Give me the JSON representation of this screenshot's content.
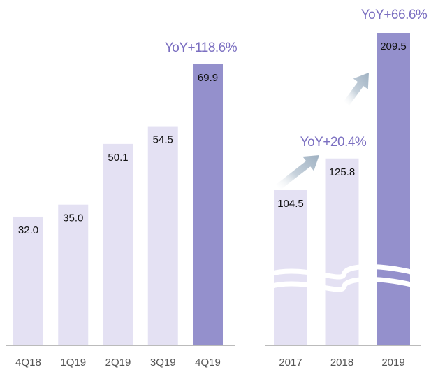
{
  "colors": {
    "light": "#e4e1f3",
    "dark": "#9490cc",
    "accent": "#7b6fc1",
    "arrow": "#a9b9c8",
    "axis": "#777777"
  },
  "chart_data": [
    {
      "type": "bar",
      "categories": [
        "4Q18",
        "1Q19",
        "2Q19",
        "3Q19",
        "4Q19"
      ],
      "values": [
        32.0,
        35.0,
        50.1,
        54.5,
        69.9
      ],
      "value_labels": [
        "32.0",
        "35.0",
        "50.1",
        "54.5",
        "69.9"
      ],
      "highlight_index": 4,
      "annotation": "YoY+118.6%",
      "ylim": [
        0,
        75
      ],
      "grid": false
    },
    {
      "type": "bar",
      "categories": [
        "2017",
        "2018",
        "2019"
      ],
      "values": [
        104.5,
        125.8,
        209.5
      ],
      "value_labels": [
        "104.5",
        "125.8",
        "209.5"
      ],
      "highlight_index": 2,
      "axis_break": true,
      "annotations": [
        "YoY+20.4%",
        "YoY+66.6%"
      ],
      "grid": false
    }
  ]
}
